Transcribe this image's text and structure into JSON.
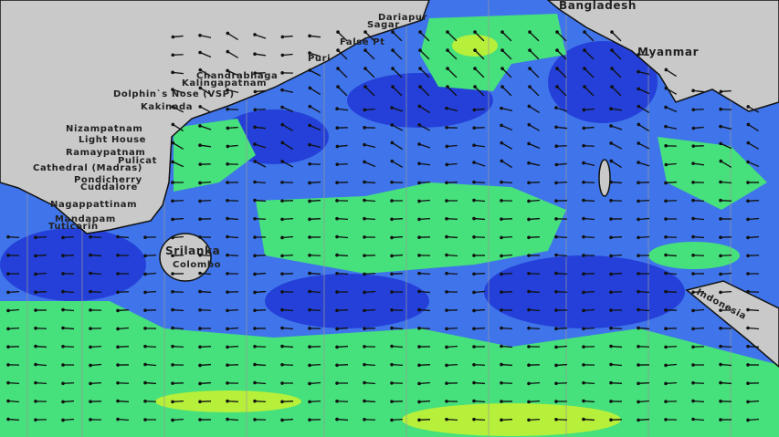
{
  "map": {
    "colors": {
      "land": "#c9c9c9",
      "ocean": "#3f74ea",
      "deep": "#2440d8",
      "green": "#46e07c",
      "lime": "#b6f03a",
      "arrow": "#111111",
      "grid": "#9a9a9a"
    },
    "places": {
      "bangladesh": "Bangladesh",
      "myanmar": "Myanmar",
      "dariapur": "Dariapur",
      "sagar": "Sagar",
      "false_point": "False Pt",
      "puri": "Puri",
      "chandrabhaga": "Chandrabhaga",
      "kalingapatnam": "Kalingapatnam",
      "dolphins_nose": "Dolphin`s Nose (VSP)",
      "kakinada": "Kakinada",
      "nizampatnam": "Nizampatnam",
      "light_house": "Light House",
      "ramayapatnam": "Ramaypatnam",
      "pulicat": "Pulicat",
      "cathedral": "Cathedral (Madras)",
      "pondicherry": "Pondicherry",
      "cuddalore": "Cuddalore",
      "nagapattinam": "Nagappattinam",
      "mandapam": "Mandapam",
      "tuticorin": "Tuticorin",
      "srilanka": "Srilanka",
      "colombo": "Colombo",
      "indonesia": "Indonesia"
    },
    "arrow_direction": "mostly westward"
  }
}
